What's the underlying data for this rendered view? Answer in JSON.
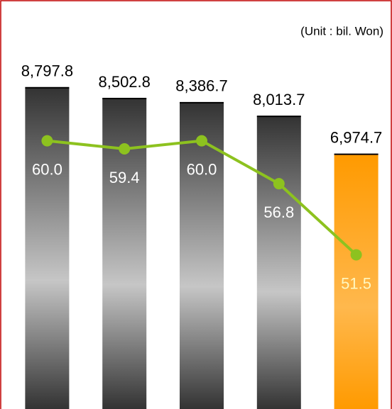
{
  "chart_data": {
    "type": "bar",
    "note": "(Unit : bil. Won)",
    "categories": [
      null,
      null,
      null,
      null,
      null
    ],
    "ylim": [
      0,
      11200
    ],
    "y2lim": [
      40,
      70.5
    ],
    "series": [
      {
        "type": "bar",
        "values": [
          8797.8,
          8502.8,
          8386.7,
          8013.7,
          6974.7
        ],
        "value_labels": [
          "8,797.8",
          "8,502.8",
          "8,386.7",
          "8,013.7",
          "6,974.7"
        ],
        "colors": [
          "#333333",
          "#333333",
          "#333333",
          "#333333",
          "#ff9a00"
        ]
      },
      {
        "type": "line",
        "axis": "y2",
        "color": "#8dc21f",
        "values": [
          60.0,
          59.4,
          60.0,
          56.8,
          51.5
        ],
        "value_labels": [
          "60.0",
          "59.4",
          "60.0",
          "56.8",
          "51.5"
        ]
      }
    ]
  }
}
